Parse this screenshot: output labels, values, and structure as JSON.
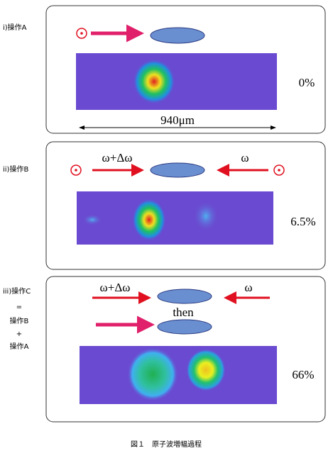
{
  "panels": [
    {
      "label": "i)操作A",
      "percent": "0%",
      "dimension": "940μm"
    },
    {
      "label": "ii)操作B",
      "left_freq": "ω+Δω",
      "right_freq": "ω",
      "percent": "6.5%"
    },
    {
      "label_lines": [
        "iii)操作C",
        "=",
        "操作B",
        "+",
        "操作A"
      ],
      "left_freq": "ω+Δω",
      "right_freq": "ω",
      "sequence": "then",
      "percent": "66%"
    }
  ],
  "caption": "図１　原子波増幅過程"
}
